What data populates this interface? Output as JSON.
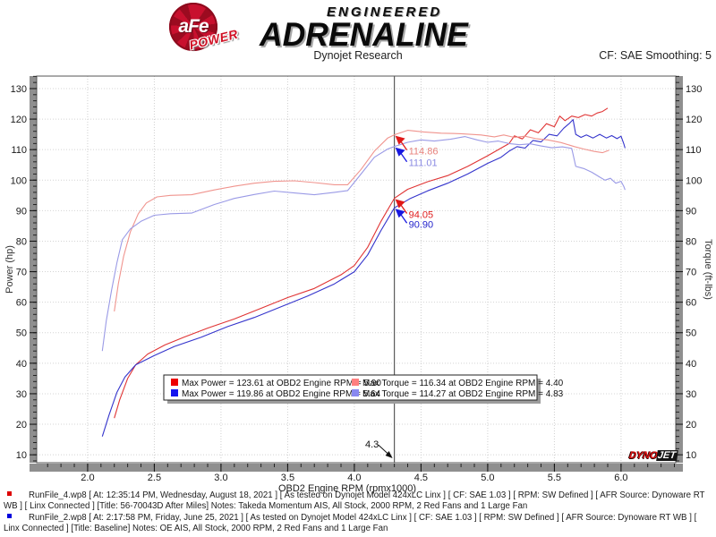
{
  "header": {
    "logo": {
      "afe": "aFe",
      "reg": "®",
      "power": "POWER",
      "line1": "ENGINEERED",
      "line2": "ADRENALINE"
    },
    "subtitle": "Dynojet Research",
    "correction": "CF: SAE Smoothing: 5"
  },
  "watermark": {
    "dyno": "DYNO",
    "jet": "JET"
  },
  "chart_data": {
    "type": "line",
    "xlabel": "OBD2 Engine RPM (rpmx1000)",
    "ylabel_left": "Power (hp)",
    "ylabel_right": "Torque (ft-lbs)",
    "xlim": [
      1.618,
      6.41
    ],
    "ylim": [
      7.4,
      134.1
    ],
    "x_major_ticks": [
      2.0,
      2.5,
      3.0,
      3.5,
      4.0,
      4.5,
      5.0,
      5.5,
      6.0
    ],
    "x_minor_step": 0.1,
    "y_major_ticks": [
      10,
      20,
      30,
      40,
      50,
      60,
      70,
      80,
      90,
      100,
      110,
      120,
      130
    ],
    "y_minor_step": 2,
    "grid": "dotted",
    "legend_position": "bottom-center",
    "cursor": {
      "x": 4.3,
      "label": "4.3"
    },
    "annotations": [
      {
        "text": "114.86",
        "value": 114.86,
        "color": "#e8837d",
        "arrow": "#e01818"
      },
      {
        "text": "111.01",
        "value": 111.01,
        "color": "#8a8ae2",
        "arrow": "#1818e0"
      },
      {
        "text": "94.05",
        "value": 94.05,
        "color": "#e02020",
        "arrow": "#e01818"
      },
      {
        "text": "90.90",
        "value": 90.9,
        "color": "#2424cc",
        "arrow": "#1818e0"
      }
    ],
    "series": [
      {
        "name": "power-red",
        "legend": "Max Power = 123.61 at OBD2 Engine RPM = 5.90",
        "color": "#e03434",
        "swatch": "#ee0000",
        "points": [
          [
            2.2,
            22
          ],
          [
            2.24,
            28
          ],
          [
            2.3,
            35
          ],
          [
            2.36,
            39.5
          ],
          [
            2.45,
            43
          ],
          [
            2.58,
            46
          ],
          [
            2.72,
            48.5
          ],
          [
            2.9,
            51.5
          ],
          [
            3.1,
            54.5
          ],
          [
            3.3,
            58
          ],
          [
            3.5,
            61.5
          ],
          [
            3.7,
            64.5
          ],
          [
            3.9,
            69
          ],
          [
            4.0,
            72
          ],
          [
            4.1,
            78
          ],
          [
            4.2,
            86.5
          ],
          [
            4.3,
            94.05
          ],
          [
            4.4,
            97
          ],
          [
            4.55,
            99.5
          ],
          [
            4.7,
            101.5
          ],
          [
            4.85,
            104.5
          ],
          [
            5.0,
            108
          ],
          [
            5.1,
            110.5
          ],
          [
            5.16,
            112
          ],
          [
            5.2,
            114.5
          ],
          [
            5.26,
            113.5
          ],
          [
            5.32,
            116.5
          ],
          [
            5.38,
            115.5
          ],
          [
            5.44,
            118.5
          ],
          [
            5.5,
            117.5
          ],
          [
            5.54,
            121
          ],
          [
            5.58,
            119.5
          ],
          [
            5.63,
            121
          ],
          [
            5.68,
            120.5
          ],
          [
            5.73,
            121.5
          ],
          [
            5.78,
            121
          ],
          [
            5.82,
            122
          ],
          [
            5.86,
            122.5
          ],
          [
            5.9,
            123.61
          ]
        ]
      },
      {
        "name": "power-blue",
        "legend": "Max Power = 119.86 at OBD2 Engine RPM = 5.64",
        "color": "#3434cc",
        "swatch": "#1414ee",
        "points": [
          [
            2.11,
            16
          ],
          [
            2.16,
            23
          ],
          [
            2.22,
            30.5
          ],
          [
            2.28,
            35.5
          ],
          [
            2.36,
            39.5
          ],
          [
            2.5,
            42.5
          ],
          [
            2.65,
            45.5
          ],
          [
            2.85,
            48.5
          ],
          [
            3.05,
            52
          ],
          [
            3.25,
            55
          ],
          [
            3.45,
            58.5
          ],
          [
            3.65,
            62
          ],
          [
            3.85,
            66
          ],
          [
            4.0,
            70
          ],
          [
            4.1,
            75.5
          ],
          [
            4.2,
            83.5
          ],
          [
            4.3,
            90.9
          ],
          [
            4.42,
            94
          ],
          [
            4.55,
            96.5
          ],
          [
            4.7,
            99
          ],
          [
            4.85,
            102
          ],
          [
            5.0,
            105.5
          ],
          [
            5.1,
            107.5
          ],
          [
            5.16,
            109.5
          ],
          [
            5.22,
            111
          ],
          [
            5.28,
            110.5
          ],
          [
            5.34,
            113
          ],
          [
            5.4,
            112.5
          ],
          [
            5.46,
            115
          ],
          [
            5.52,
            114.5
          ],
          [
            5.57,
            117
          ],
          [
            5.61,
            118.5
          ],
          [
            5.64,
            119.86
          ],
          [
            5.66,
            115
          ],
          [
            5.7,
            114
          ],
          [
            5.74,
            114.8
          ],
          [
            5.79,
            113.8
          ],
          [
            5.84,
            115
          ],
          [
            5.89,
            113.8
          ],
          [
            5.93,
            114.6
          ],
          [
            5.97,
            113.6
          ],
          [
            6.0,
            114.4
          ],
          [
            6.02,
            112
          ],
          [
            6.03,
            110.5
          ]
        ]
      },
      {
        "name": "torque-red",
        "legend": "Max Torque = 116.34 at OBD2 Engine RPM = 4.40",
        "color": "#f0948e",
        "swatch": "#ff8080",
        "points": [
          [
            2.2,
            57
          ],
          [
            2.23,
            66
          ],
          [
            2.27,
            75
          ],
          [
            2.32,
            83
          ],
          [
            2.38,
            89
          ],
          [
            2.44,
            92.5
          ],
          [
            2.52,
            94.5
          ],
          [
            2.62,
            95
          ],
          [
            2.78,
            95.2
          ],
          [
            2.95,
            96.8
          ],
          [
            3.1,
            98
          ],
          [
            3.25,
            99
          ],
          [
            3.4,
            99.6
          ],
          [
            3.55,
            99.8
          ],
          [
            3.7,
            99.2
          ],
          [
            3.85,
            98.5
          ],
          [
            3.95,
            98.5
          ],
          [
            4.05,
            103.5
          ],
          [
            4.15,
            109.5
          ],
          [
            4.25,
            113.8
          ],
          [
            4.3,
            114.86
          ],
          [
            4.4,
            116.34
          ],
          [
            4.52,
            115.8
          ],
          [
            4.65,
            115.4
          ],
          [
            4.8,
            115.2
          ],
          [
            4.95,
            114.8
          ],
          [
            5.05,
            114.2
          ],
          [
            5.12,
            114.8
          ],
          [
            5.2,
            114
          ],
          [
            5.28,
            114.4
          ],
          [
            5.36,
            113.6
          ],
          [
            5.45,
            113.2
          ],
          [
            5.55,
            112.3
          ],
          [
            5.65,
            111
          ],
          [
            5.72,
            110.2
          ],
          [
            5.8,
            109.4
          ],
          [
            5.86,
            109
          ],
          [
            5.91,
            109.8
          ]
        ]
      },
      {
        "name": "torque-blue",
        "legend": "Max Torque = 114.27 at OBD2 Engine RPM = 4.83",
        "color": "#9a9ae6",
        "swatch": "#8888f0",
        "points": [
          [
            2.11,
            44
          ],
          [
            2.14,
            54
          ],
          [
            2.18,
            64
          ],
          [
            2.22,
            73
          ],
          [
            2.26,
            80.5
          ],
          [
            2.32,
            84
          ],
          [
            2.4,
            86.5
          ],
          [
            2.5,
            88.5
          ],
          [
            2.62,
            89
          ],
          [
            2.78,
            89.2
          ],
          [
            2.95,
            92
          ],
          [
            3.1,
            94
          ],
          [
            3.25,
            95.3
          ],
          [
            3.4,
            96.4
          ],
          [
            3.55,
            95.8
          ],
          [
            3.7,
            95.2
          ],
          [
            3.85,
            96
          ],
          [
            3.95,
            96.6
          ],
          [
            4.05,
            102
          ],
          [
            4.15,
            107.5
          ],
          [
            4.25,
            110.2
          ],
          [
            4.3,
            111.01
          ],
          [
            4.4,
            112.4
          ],
          [
            4.5,
            113.2
          ],
          [
            4.6,
            112.8
          ],
          [
            4.72,
            113.4
          ],
          [
            4.83,
            114.27
          ],
          [
            4.92,
            113.2
          ],
          [
            5.0,
            112.4
          ],
          [
            5.08,
            112.8
          ],
          [
            5.16,
            112
          ],
          [
            5.24,
            111.6
          ],
          [
            5.32,
            111.9
          ],
          [
            5.4,
            111.2
          ],
          [
            5.48,
            110.6
          ],
          [
            5.56,
            110.9
          ],
          [
            5.63,
            110.4
          ],
          [
            5.66,
            104.5
          ],
          [
            5.72,
            103.8
          ],
          [
            5.78,
            102.6
          ],
          [
            5.84,
            101
          ],
          [
            5.88,
            100
          ],
          [
            5.92,
            100.6
          ],
          [
            5.96,
            99
          ],
          [
            6.0,
            99.6
          ],
          [
            6.02,
            98
          ],
          [
            6.03,
            96.8
          ]
        ]
      }
    ]
  },
  "footer": {
    "runs": [
      {
        "color": "#dd0000",
        "text": "RunFile_4.wp8 [ At: 12:35:14 PM, Wednesday, August 18, 2021 ] [ As tested on Dynojet Model 424xLC Linx ] [ CF: SAE 1.03 ] [ RPM: SW Defined ] [ AFR Source: Dynoware RT WB ] [ Linx Connected ] [Title: 56-70043D After Miles]  Notes: Takeda Momentum AIS, All Stock, 2000 RPM, 2 Red Fans and 1 Large Fan"
      },
      {
        "color": "#0000dd",
        "text": "RunFile_2.wp8 [ At: 2:17:58 PM, Friday, June 25, 2021 ] [ As tested on Dynojet Model 424xLC Linx ] [ CF: SAE 1.03 ] [ RPM: SW Defined ] [ AFR Source: Dynoware RT WB ] [ Linx Connected ] [Title: Baseline]  Notes: OE  AIS, All Stock, 2000 RPM, 2 Red Fans and 1 Large Fan"
      }
    ]
  }
}
